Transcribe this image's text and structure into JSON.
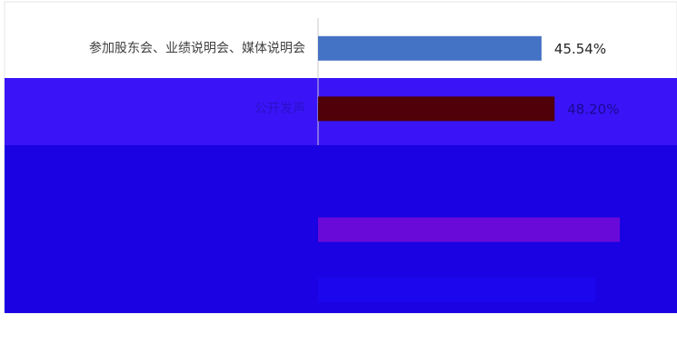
{
  "chart_data": {
    "type": "bar",
    "orientation": "horizontal",
    "categories": [
      "参加股东会、业绩说明会、媒体说明会",
      "公开发声",
      null,
      null,
      null
    ],
    "values": [
      45.54,
      48.2,
      null,
      61.5,
      56.5
    ],
    "value_labels": [
      "45.54%",
      "48.20%",
      null,
      null,
      null
    ],
    "colors": [
      "#4472c4",
      "#500008",
      null,
      "#6a0ad8",
      "#1c06ee"
    ],
    "xlim": [
      0,
      65
    ]
  }
}
